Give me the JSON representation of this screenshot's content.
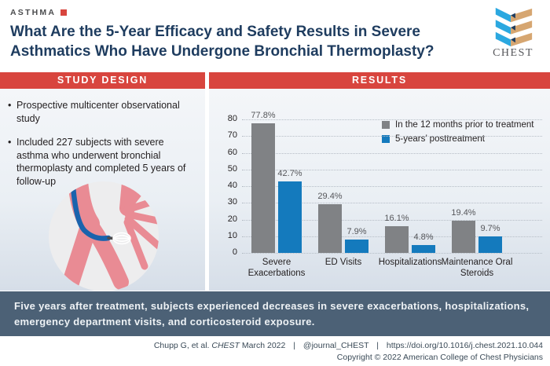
{
  "header": {
    "category": "ASTHMA",
    "title": "What Are the 5-Year Efficacy and Safety Results in Severe Asthmatics Who Have Undergone Bronchial Thermoplasty?",
    "logo_text": "CHEST"
  },
  "study_design": {
    "heading": "STUDY DESIGN",
    "bullets": [
      "Prospective multicenter observational study",
      "Included 227 subjects with severe asthma who underwent bronchial thermoplasty and completed 5 years of follow-up"
    ]
  },
  "results": {
    "heading": "RESULTS"
  },
  "chart_data": {
    "type": "bar",
    "title": "",
    "categories": [
      "Severe Exacerbations",
      "ED Visits",
      "Hospitalizations",
      "Maintenance Oral Steroids"
    ],
    "series": [
      {
        "name": "In the 12 months prior to treatment",
        "color": "#808285",
        "values": [
          77.8,
          29.4,
          16.1,
          19.4
        ]
      },
      {
        "name": "5-years’ posttreatment",
        "color": "#147abd",
        "values": [
          42.7,
          7.9,
          4.8,
          9.7
        ]
      }
    ],
    "value_suffix": "%",
    "xlabel": "",
    "ylabel": "",
    "ylim": [
      0,
      80
    ],
    "ytick_step": 10,
    "grid": "horizontal-dotted",
    "legend_position": "top-right"
  },
  "summary_banner": {
    "text": "Five years after treatment, subjects experienced decreases in severe exacerbations, hospitalizations, emergency department visits, and corticosteroid exposure."
  },
  "footer": {
    "citation_authors": "Chupp G, et al.",
    "journal_name": "CHEST",
    "issue": "March 2022",
    "separator": "|",
    "twitter": "@journal_CHEST",
    "doi": "https://doi.org/10.1016/j.chest.2021.10.044",
    "copyright": "Copyright © 2022 American College of Chest Physicians"
  },
  "colors": {
    "accent_red": "#d8453e",
    "title_navy": "#1e3c5f",
    "banner_slate": "#4c6176",
    "bar_gray": "#808285",
    "bar_blue": "#147abd",
    "logo_blue": "#2ba8e0",
    "logo_tan": "#d6a671"
  }
}
